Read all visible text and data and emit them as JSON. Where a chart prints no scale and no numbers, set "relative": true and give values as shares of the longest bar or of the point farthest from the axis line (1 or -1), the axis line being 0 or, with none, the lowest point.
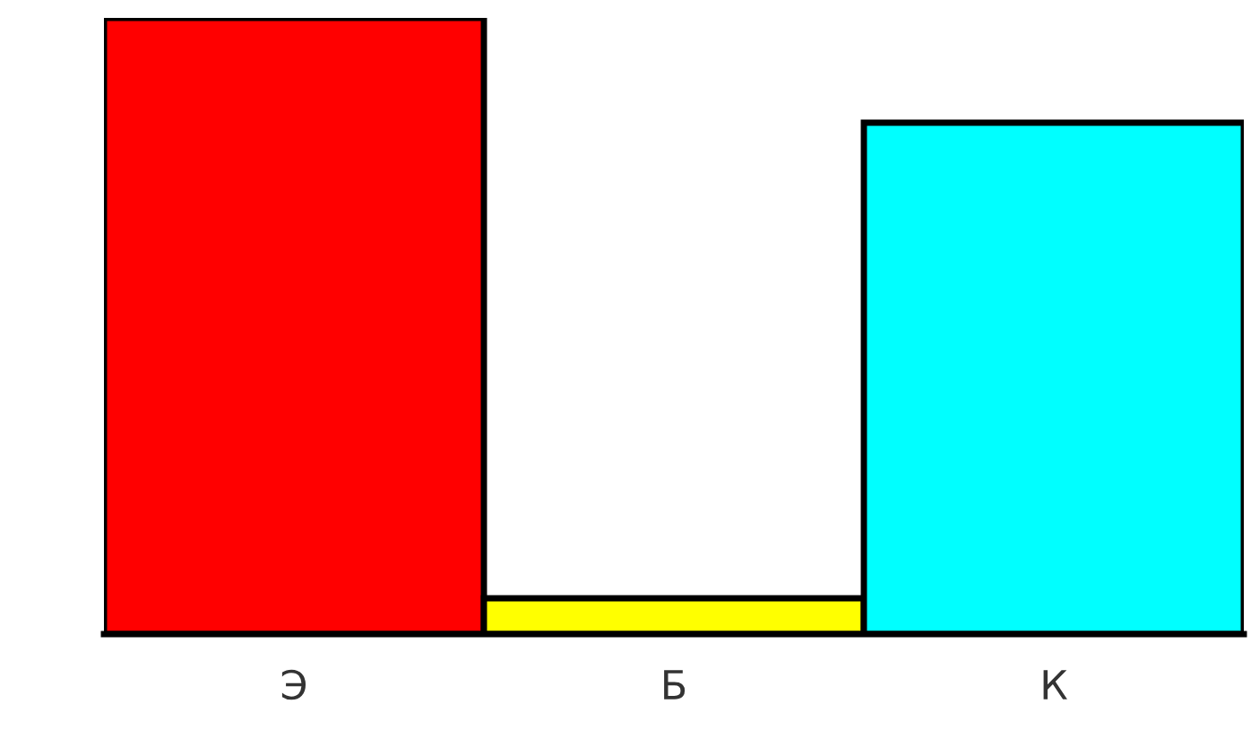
{
  "chart_data": {
    "type": "bar",
    "relative": true,
    "categories": [
      "Э",
      "Б",
      "К"
    ],
    "values": [
      1,
      0.058,
      0.83
    ],
    "colors": [
      "#ff0000",
      "#ffff00",
      "#00ffff"
    ],
    "grid": false
  }
}
